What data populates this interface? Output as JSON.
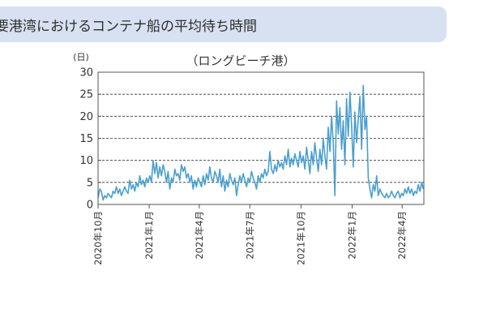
{
  "header": {
    "title": "要港湾におけるコンテナ船の平均待ち時間"
  },
  "chart_data": {
    "type": "line",
    "title": "（ロングビーチ港）",
    "ylabel": "(日)",
    "xlabel": "",
    "ylim": [
      0,
      30
    ],
    "yticks": [
      0,
      5,
      10,
      15,
      20,
      25,
      30
    ],
    "xlim": [
      "2020-10-01",
      "2022-05-10"
    ],
    "xticks": [
      {
        "date": "2020-10-01",
        "label": "2020年10月"
      },
      {
        "date": "2021-01-01",
        "label": "2021年1月"
      },
      {
        "date": "2021-04-01",
        "label": "2021年4月"
      },
      {
        "date": "2021-07-01",
        "label": "2021年7月"
      },
      {
        "date": "2021-10-01",
        "label": "2021年10月"
      },
      {
        "date": "2022-01-01",
        "label": "2022年1月"
      },
      {
        "date": "2022-04-01",
        "label": "2022年4月"
      }
    ],
    "grid": "horizontal-dashed",
    "series": [
      {
        "color": "#4a9fcf",
        "points": [
          [
            "2020-10-01",
            1.5
          ],
          [
            "2020-10-04",
            3.5
          ],
          [
            "2020-10-07",
            3.0
          ],
          [
            "2020-10-10",
            1.0
          ],
          [
            "2020-10-13",
            2.0
          ],
          [
            "2020-10-16",
            1.5
          ],
          [
            "2020-10-19",
            2.5
          ],
          [
            "2020-10-22",
            2.0
          ],
          [
            "2020-10-25",
            1.5
          ],
          [
            "2020-10-28",
            3.0
          ],
          [
            "2020-10-31",
            2.5
          ],
          [
            "2020-11-03",
            4.0
          ],
          [
            "2020-11-06",
            2.5
          ],
          [
            "2020-11-09",
            3.5
          ],
          [
            "2020-11-12",
            2.0
          ],
          [
            "2020-11-15",
            3.0
          ],
          [
            "2020-11-18",
            4.0
          ],
          [
            "2020-11-21",
            3.0
          ],
          [
            "2020-11-24",
            2.5
          ],
          [
            "2020-11-27",
            5.5
          ],
          [
            "2020-11-30",
            3.5
          ],
          [
            "2020-12-03",
            4.5
          ],
          [
            "2020-12-06",
            3.0
          ],
          [
            "2020-12-09",
            5.0
          ],
          [
            "2020-12-12",
            4.0
          ],
          [
            "2020-12-15",
            6.5
          ],
          [
            "2020-12-18",
            4.5
          ],
          [
            "2020-12-21",
            5.5
          ],
          [
            "2020-12-24",
            4.0
          ],
          [
            "2020-12-27",
            6.0
          ],
          [
            "2020-12-30",
            5.0
          ],
          [
            "2021-01-02",
            6.5
          ],
          [
            "2021-01-05",
            5.0
          ],
          [
            "2021-01-08",
            10.0
          ],
          [
            "2021-01-11",
            7.0
          ],
          [
            "2021-01-14",
            9.5
          ],
          [
            "2021-01-17",
            6.0
          ],
          [
            "2021-01-20",
            8.5
          ],
          [
            "2021-01-23",
            6.5
          ],
          [
            "2021-01-26",
            9.0
          ],
          [
            "2021-01-29",
            7.5
          ],
          [
            "2021-02-01",
            5.0
          ],
          [
            "2021-02-04",
            7.5
          ],
          [
            "2021-02-07",
            3.5
          ],
          [
            "2021-02-10",
            6.0
          ],
          [
            "2021-02-13",
            5.0
          ],
          [
            "2021-02-16",
            8.0
          ],
          [
            "2021-02-19",
            6.5
          ],
          [
            "2021-02-22",
            7.0
          ],
          [
            "2021-02-25",
            5.5
          ],
          [
            "2021-02-28",
            9.0
          ],
          [
            "2021-03-03",
            7.5
          ],
          [
            "2021-03-06",
            8.5
          ],
          [
            "2021-03-09",
            6.0
          ],
          [
            "2021-03-12",
            7.0
          ],
          [
            "2021-03-15",
            5.0
          ],
          [
            "2021-03-18",
            6.5
          ],
          [
            "2021-03-21",
            3.5
          ],
          [
            "2021-03-24",
            5.5
          ],
          [
            "2021-03-27",
            4.0
          ],
          [
            "2021-03-30",
            6.0
          ],
          [
            "2021-04-02",
            5.0
          ],
          [
            "2021-04-05",
            4.0
          ],
          [
            "2021-04-08",
            6.5
          ],
          [
            "2021-04-11",
            4.5
          ],
          [
            "2021-04-14",
            7.0
          ],
          [
            "2021-04-17",
            5.5
          ],
          [
            "2021-04-20",
            8.5
          ],
          [
            "2021-04-23",
            6.0
          ],
          [
            "2021-04-26",
            5.0
          ],
          [
            "2021-04-29",
            7.5
          ],
          [
            "2021-05-02",
            6.5
          ],
          [
            "2021-05-05",
            5.0
          ],
          [
            "2021-05-08",
            8.0
          ],
          [
            "2021-05-11",
            4.0
          ],
          [
            "2021-05-14",
            6.5
          ],
          [
            "2021-05-17",
            3.0
          ],
          [
            "2021-05-20",
            5.5
          ],
          [
            "2021-05-23",
            4.0
          ],
          [
            "2021-05-26",
            7.0
          ],
          [
            "2021-05-29",
            5.5
          ],
          [
            "2021-06-01",
            4.5
          ],
          [
            "2021-06-04",
            6.0
          ],
          [
            "2021-06-07",
            2.0
          ],
          [
            "2021-06-10",
            4.5
          ],
          [
            "2021-06-13",
            6.5
          ],
          [
            "2021-06-16",
            5.0
          ],
          [
            "2021-06-19",
            7.0
          ],
          [
            "2021-06-22",
            5.5
          ],
          [
            "2021-06-25",
            4.0
          ],
          [
            "2021-06-28",
            6.0
          ],
          [
            "2021-07-01",
            5.0
          ],
          [
            "2021-07-04",
            7.5
          ],
          [
            "2021-07-07",
            6.0
          ],
          [
            "2021-07-10",
            5.0
          ],
          [
            "2021-07-13",
            3.5
          ],
          [
            "2021-07-16",
            6.5
          ],
          [
            "2021-07-19",
            5.0
          ],
          [
            "2021-07-22",
            7.0
          ],
          [
            "2021-07-25",
            6.0
          ],
          [
            "2021-07-28",
            8.0
          ],
          [
            "2021-07-31",
            6.5
          ],
          [
            "2021-08-03",
            7.5
          ],
          [
            "2021-08-06",
            12.0
          ],
          [
            "2021-08-09",
            8.0
          ],
          [
            "2021-08-12",
            7.0
          ],
          [
            "2021-08-15",
            9.0
          ],
          [
            "2021-08-18",
            7.5
          ],
          [
            "2021-08-21",
            10.0
          ],
          [
            "2021-08-24",
            8.5
          ],
          [
            "2021-08-27",
            9.5
          ],
          [
            "2021-08-30",
            8.0
          ],
          [
            "2021-09-02",
            11.0
          ],
          [
            "2021-09-05",
            9.0
          ],
          [
            "2021-09-08",
            12.5
          ],
          [
            "2021-09-11",
            8.5
          ],
          [
            "2021-09-14",
            10.5
          ],
          [
            "2021-09-17",
            9.0
          ],
          [
            "2021-09-20",
            11.5
          ],
          [
            "2021-09-23",
            10.0
          ],
          [
            "2021-09-26",
            8.5
          ],
          [
            "2021-09-29",
            12.0
          ],
          [
            "2021-10-02",
            9.5
          ],
          [
            "2021-10-05",
            11.0
          ],
          [
            "2021-10-08",
            8.0
          ],
          [
            "2021-10-11",
            13.0
          ],
          [
            "2021-10-14",
            10.0
          ],
          [
            "2021-10-17",
            7.0
          ],
          [
            "2021-10-20",
            12.0
          ],
          [
            "2021-10-23",
            9.0
          ],
          [
            "2021-10-26",
            14.0
          ],
          [
            "2021-10-29",
            10.5
          ],
          [
            "2021-11-01",
            7.5
          ],
          [
            "2021-11-04",
            12.5
          ],
          [
            "2021-11-07",
            9.0
          ],
          [
            "2021-11-10",
            15.0
          ],
          [
            "2021-11-13",
            11.0
          ],
          [
            "2021-11-16",
            8.0
          ],
          [
            "2021-11-19",
            17.5
          ],
          [
            "2021-11-22",
            12.0
          ],
          [
            "2021-11-25",
            20.0
          ],
          [
            "2021-11-28",
            14.0
          ],
          [
            "2021-12-01",
            2.0
          ],
          [
            "2021-12-04",
            23.5
          ],
          [
            "2021-12-07",
            16.0
          ],
          [
            "2021-12-10",
            22.0
          ],
          [
            "2021-12-13",
            12.5
          ],
          [
            "2021-12-16",
            19.0
          ],
          [
            "2021-12-19",
            9.0
          ],
          [
            "2021-12-22",
            24.0
          ],
          [
            "2021-12-25",
            15.5
          ],
          [
            "2021-12-28",
            25.5
          ],
          [
            "2021-12-31",
            18.0
          ],
          [
            "2022-01-03",
            8.5
          ],
          [
            "2022-01-06",
            21.0
          ],
          [
            "2022-01-09",
            14.0
          ],
          [
            "2022-01-12",
            19.5
          ],
          [
            "2022-01-15",
            24.5
          ],
          [
            "2022-01-18",
            12.5
          ],
          [
            "2022-01-21",
            27.0
          ],
          [
            "2022-01-24",
            17.0
          ],
          [
            "2022-01-27",
            20.0
          ],
          [
            "2022-01-30",
            6.0
          ],
          [
            "2022-02-02",
            3.5
          ],
          [
            "2022-02-05",
            1.5
          ],
          [
            "2022-02-08",
            4.5
          ],
          [
            "2022-02-11",
            3.0
          ],
          [
            "2022-02-14",
            6.5
          ],
          [
            "2022-02-17",
            2.0
          ],
          [
            "2022-02-20",
            3.5
          ],
          [
            "2022-02-23",
            2.5
          ],
          [
            "2022-02-26",
            2.0
          ],
          [
            "2022-03-01",
            1.5
          ],
          [
            "2022-03-04",
            2.5
          ],
          [
            "2022-03-07",
            1.5
          ],
          [
            "2022-03-10",
            2.0
          ],
          [
            "2022-03-13",
            3.0
          ],
          [
            "2022-03-16",
            2.0
          ],
          [
            "2022-03-19",
            1.5
          ],
          [
            "2022-03-22",
            2.5
          ],
          [
            "2022-03-25",
            3.0
          ],
          [
            "2022-03-28",
            1.5
          ],
          [
            "2022-03-31",
            2.5
          ],
          [
            "2022-04-03",
            2.0
          ],
          [
            "2022-04-06",
            3.5
          ],
          [
            "2022-04-09",
            2.5
          ],
          [
            "2022-04-12",
            4.0
          ],
          [
            "2022-04-15",
            2.5
          ],
          [
            "2022-04-18",
            3.5
          ],
          [
            "2022-04-21",
            2.0
          ],
          [
            "2022-04-24",
            3.0
          ],
          [
            "2022-04-27",
            2.5
          ],
          [
            "2022-04-30",
            4.5
          ],
          [
            "2022-05-03",
            3.0
          ],
          [
            "2022-05-06",
            5.0
          ],
          [
            "2022-05-09",
            3.5
          ]
        ]
      }
    ]
  }
}
